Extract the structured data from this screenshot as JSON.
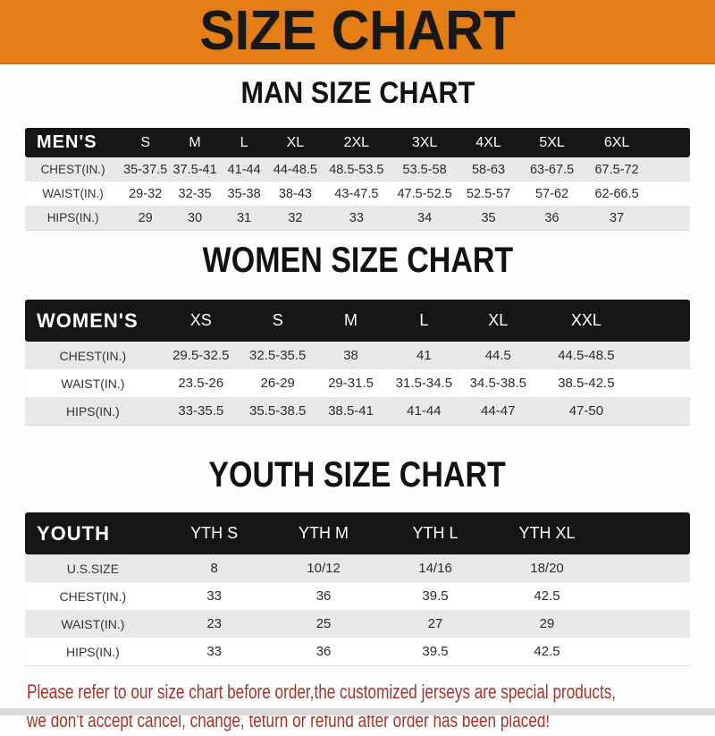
{
  "banner": {
    "title": "SIZE CHART"
  },
  "headings": {
    "men": "MAN SIZE CHART",
    "women": "WOMEN SIZE CHART",
    "youth": "YOUTH SIZE CHART"
  },
  "tables": {
    "men": {
      "header": [
        "MEN'S",
        "S",
        "M",
        "L",
        "XL",
        "2XL",
        "3XL",
        "4XL",
        "5XL",
        "6XL"
      ],
      "rows": [
        [
          "CHEST(IN.)",
          "35-37.5",
          "37.5-41",
          "41-44",
          "44-48.5",
          "48.5-53.5",
          "53.5-58",
          "58-63",
          "63-67.5",
          "67.5-72"
        ],
        [
          "WAIST(IN.)",
          "29-32",
          "32-35",
          "35-38",
          "38-43",
          "43-47.5",
          "47.5-52.5",
          "52.5-57",
          "57-62",
          "62-66.5"
        ],
        [
          "HIPS(IN.)",
          "29",
          "30",
          "31",
          "32",
          "33",
          "34",
          "35",
          "36",
          "37"
        ]
      ]
    },
    "women": {
      "header": [
        "WOMEN'S",
        "XS",
        "S",
        "M",
        "L",
        "XL",
        "XXL"
      ],
      "rows": [
        [
          "CHEST(IN.)",
          "29.5-32.5",
          "32.5-35.5",
          "38",
          "41",
          "44.5",
          "44.5-48.5"
        ],
        [
          "WAIST(IN.)",
          "23.5-26",
          "26-29",
          "29-31.5",
          "31.5-34.5",
          "34.5-38.5",
          "38.5-42.5"
        ],
        [
          "HIPS(IN.)",
          "33-35.5",
          "35.5-38.5",
          "38.5-41",
          "41-44",
          "44-47",
          "47-50"
        ]
      ]
    },
    "youth": {
      "header": [
        "YOUTH",
        "YTH S",
        "YTH M",
        "YTH L",
        "YTH XL"
      ],
      "rows": [
        [
          "U.S.SIZE",
          "8",
          "10/12",
          "14/16",
          "18/20"
        ],
        [
          "CHEST(IN.)",
          "33",
          "36",
          "39.5",
          "42.5"
        ],
        [
          "WAIST(IN.)",
          "23",
          "25",
          "27",
          "29"
        ],
        [
          "HIPS(IN.)",
          "33",
          "36",
          "39.5",
          "42.5"
        ]
      ]
    }
  },
  "footer": {
    "line1": "Please refer to our size chart before order,the customized jerseys are special products,",
    "line2": "we don't accept cancel, change, teturn or refund after order has been placed!"
  },
  "colors": {
    "banner_orange": "#E67E18",
    "banner_orange_dark": "#C96F12",
    "band_black": "#161616",
    "row_gray": "#E8E8E8",
    "note_red": "#A6352B"
  }
}
